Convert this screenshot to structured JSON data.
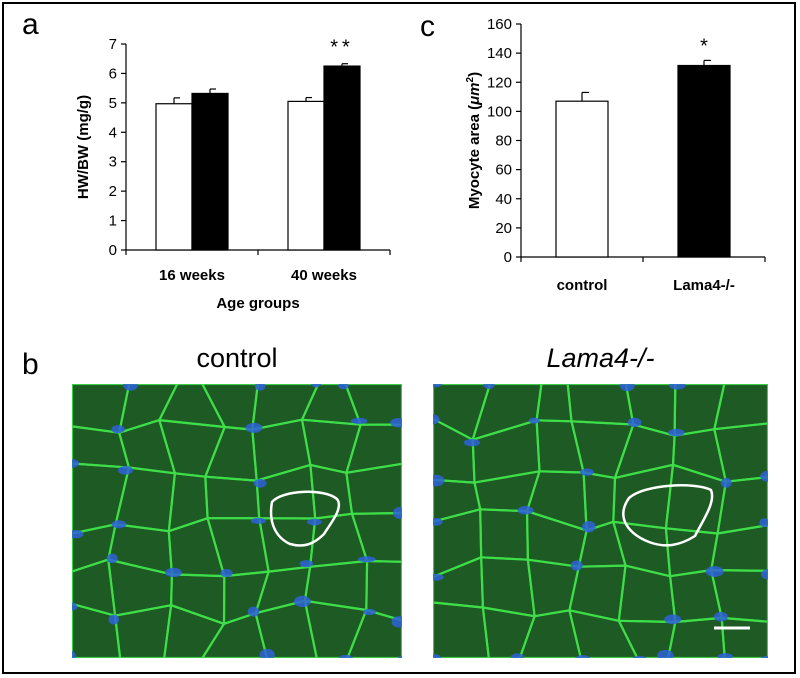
{
  "panels": {
    "a_letter": "a",
    "b_letter": "b",
    "c_letter": "c"
  },
  "chart_data": [
    {
      "type": "bar",
      "categories": [
        "16 weeks",
        "40 weeks"
      ],
      "series": [
        {
          "values": [
            4.97,
            5.05
          ],
          "errors": [
            0.2,
            0.13
          ],
          "color": "#ffffff"
        },
        {
          "values": [
            5.32,
            6.25
          ],
          "errors": [
            0.15,
            0.08
          ],
          "color": "#000000"
        }
      ],
      "annotations": [
        {
          "category": "40 weeks",
          "text": "**"
        }
      ],
      "xlabel": "Age groups",
      "ylabel": "HW/BW (mg/g)",
      "ylim": [
        0,
        7
      ],
      "yticks": [
        0,
        1,
        2,
        3,
        4,
        5,
        6,
        7
      ],
      "grid": false
    },
    {
      "type": "bar",
      "categories": [
        "control",
        "Lama4-/-"
      ],
      "values": [
        107,
        131.5
      ],
      "errors": [
        6,
        3.5
      ],
      "colors": [
        "#ffffff",
        "#000000"
      ],
      "annotations": [
        {
          "category": "Lama4-/-",
          "text": "*"
        }
      ],
      "xlabel": "",
      "ylabel_main": "Myocyte area (",
      "ylabel_unit": "μm",
      "ylabel_sup": "2",
      "ylabel_close": ")",
      "ylim": [
        0,
        160
      ],
      "yticks": [
        0,
        20,
        40,
        60,
        80,
        100,
        120,
        140,
        160
      ],
      "grid": false
    }
  ],
  "micrographs": [
    {
      "title": "control",
      "italic": false,
      "bg": "#1d5a24",
      "membrane": "#3fe04a",
      "nuclei": "#2e63d8"
    },
    {
      "title": "Lama4-/-",
      "italic": true,
      "bg": "#1d5a24",
      "membrane": "#3fe04a",
      "nuclei": "#2e63d8"
    }
  ]
}
